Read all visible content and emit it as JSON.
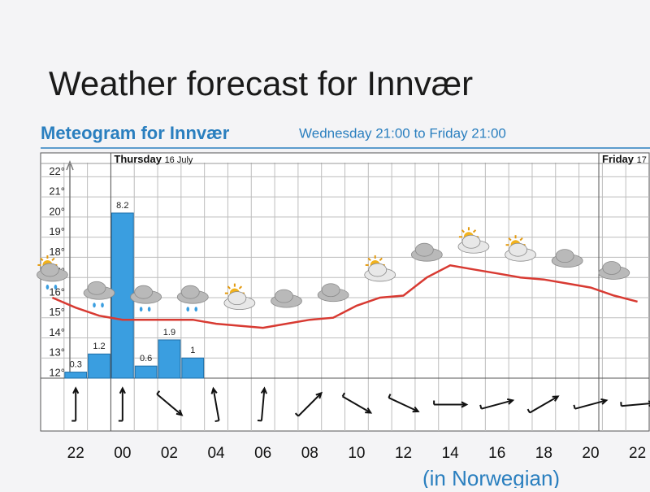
{
  "title": "Weather forecast for Innvær",
  "chart_data": {
    "type": "line",
    "subtitle": "Meteogram for Innvær",
    "subtitle_range": "Wednesday 21:00 to Friday 21:00",
    "day_labels": [
      {
        "day": "Thursday",
        "date": "16 July"
      },
      {
        "day": "Friday",
        "date": "17"
      }
    ],
    "categories": [
      null,
      "22",
      null,
      "00",
      null,
      "02",
      null,
      "04",
      null,
      "06",
      null,
      "08",
      null,
      "10",
      null,
      "12",
      null,
      "14",
      null,
      "16",
      null,
      "18",
      null,
      "20",
      null,
      "22"
    ],
    "series": [
      {
        "type": "line",
        "color": "#d83a32",
        "values": [
          16.0,
          15.5,
          15.1,
          14.9,
          14.9,
          14.9,
          14.9,
          14.7,
          14.6,
          14.5,
          14.7,
          14.9,
          15.0,
          15.6,
          16.0,
          16.1,
          17.0,
          17.6,
          17.4,
          17.2,
          17.0,
          16.9,
          16.7,
          16.5,
          16.1,
          15.8
        ]
      },
      {
        "type": "bar",
        "axis": "y2",
        "color": "#3a9ee0",
        "values": [
          null,
          0.3,
          1.2,
          8.2,
          0.6,
          1.9,
          1.0,
          null,
          null,
          null,
          null,
          null,
          null,
          null,
          null,
          null,
          null,
          null,
          null,
          null,
          null,
          null,
          null,
          null,
          null,
          null
        ]
      }
    ],
    "ylim": [
      12,
      22.5
    ],
    "yticks": [
      {
        "value": 12,
        "label": "12°"
      },
      {
        "value": 13,
        "label": "13°"
      },
      {
        "value": 14,
        "label": "14°"
      },
      {
        "value": 15,
        "label": "15°"
      },
      {
        "value": 16,
        "label": "16°"
      },
      {
        "value": 17,
        "label": "17°"
      },
      {
        "value": 18,
        "label": "18°"
      },
      {
        "value": 19,
        "label": "19°"
      },
      {
        "value": 20,
        "label": "20°"
      },
      {
        "value": 21,
        "label": "21°"
      },
      {
        "value": 22,
        "label": "22°"
      }
    ],
    "y2lim": [
      0,
      10.5
    ],
    "grid": true,
    "footer": "(in Norwegian)"
  }
}
